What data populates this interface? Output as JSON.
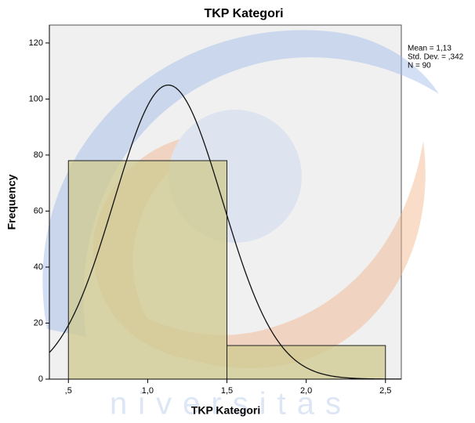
{
  "chart_data": {
    "type": "histogram",
    "title": "TKP Kategori",
    "x_label": "TKP Kategori",
    "y_label": "Frequency",
    "bins": [
      0.5,
      1.5,
      2.5
    ],
    "values": [
      78,
      12
    ],
    "color": "#cfca8e",
    "xlim": [
      0.38,
      2.6
    ],
    "xticks": [
      {
        "value": 0.5,
        "label": ",5"
      },
      {
        "value": 1.0,
        "label": "1,0"
      },
      {
        "value": 1.5,
        "label": "1,5"
      },
      {
        "value": 2.0,
        "label": "2,0"
      },
      {
        "value": 2.5,
        "label": "2,5"
      }
    ],
    "ylim": [
      0,
      126.4
    ],
    "yticks": [
      0,
      20,
      40,
      60,
      80,
      100,
      120
    ],
    "stats": [
      "Mean = 1,13",
      "Std. Dev. = ,342",
      "N = 90"
    ],
    "normal_curve": {
      "mean": 1.13,
      "sd": 0.342,
      "n": 90
    },
    "watermark": "niversitas"
  }
}
